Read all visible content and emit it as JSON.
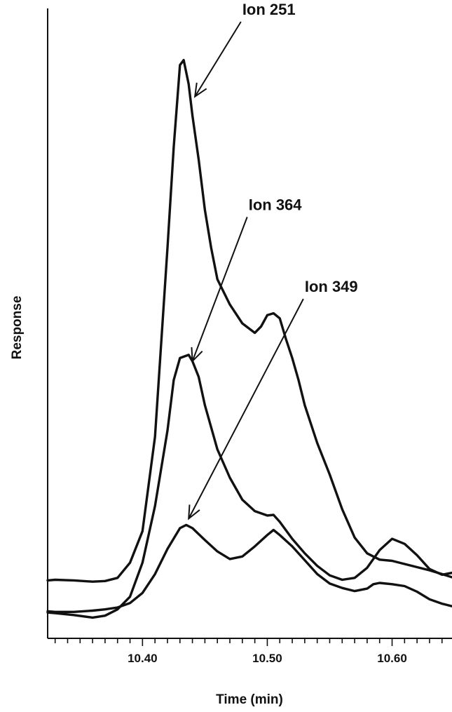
{
  "chart_data": {
    "type": "line",
    "xlabel": "Time (min)",
    "ylabel": "Response",
    "xlim": [
      10.324,
      10.648
    ],
    "ylim": [
      0,
      100
    ],
    "x_ticks": [
      10.4,
      10.5,
      10.6
    ],
    "x_tick_labels": [
      "10.40",
      "10.50",
      "10.60"
    ],
    "x_minor_step": 0.01,
    "series": [
      {
        "name": "Ion 251",
        "points": [
          [
            10.324,
            9.2
          ],
          [
            10.33,
            9.3
          ],
          [
            10.345,
            9.2
          ],
          [
            10.36,
            9.0
          ],
          [
            10.37,
            9.1
          ],
          [
            10.38,
            9.6
          ],
          [
            10.39,
            12.0
          ],
          [
            10.4,
            17.0
          ],
          [
            10.41,
            32.0
          ],
          [
            10.42,
            62.0
          ],
          [
            10.425,
            78.0
          ],
          [
            10.43,
            91.0
          ],
          [
            10.433,
            91.8
          ],
          [
            10.437,
            88.0
          ],
          [
            10.44,
            83.0
          ],
          [
            10.445,
            76.0
          ],
          [
            10.45,
            68.0
          ],
          [
            10.455,
            62.0
          ],
          [
            10.46,
            57.0
          ],
          [
            10.465,
            55.0
          ],
          [
            10.47,
            53.0
          ],
          [
            10.48,
            50.0
          ],
          [
            10.49,
            48.5
          ],
          [
            10.495,
            49.5
          ],
          [
            10.5,
            51.3
          ],
          [
            10.505,
            51.6
          ],
          [
            10.51,
            50.8
          ],
          [
            10.515,
            47.5
          ],
          [
            10.52,
            44.5
          ],
          [
            10.525,
            41.0
          ],
          [
            10.53,
            37.0
          ],
          [
            10.54,
            31.0
          ],
          [
            10.55,
            26.0
          ],
          [
            10.56,
            20.5
          ],
          [
            10.57,
            16.0
          ],
          [
            10.58,
            13.5
          ],
          [
            10.59,
            12.5
          ],
          [
            10.6,
            12.3
          ],
          [
            10.61,
            11.8
          ],
          [
            10.62,
            11.3
          ],
          [
            10.63,
            10.8
          ],
          [
            10.64,
            10.2
          ],
          [
            10.648,
            9.7
          ]
        ]
      },
      {
        "name": "Ion 364",
        "points": [
          [
            10.324,
            4.1
          ],
          [
            10.33,
            4.0
          ],
          [
            10.345,
            3.7
          ],
          [
            10.36,
            3.3
          ],
          [
            10.37,
            3.6
          ],
          [
            10.38,
            4.6
          ],
          [
            10.39,
            6.6
          ],
          [
            10.4,
            12.0
          ],
          [
            10.41,
            21.0
          ],
          [
            10.42,
            33.0
          ],
          [
            10.425,
            41.0
          ],
          [
            10.43,
            44.5
          ],
          [
            10.437,
            45.0
          ],
          [
            10.44,
            44.0
          ],
          [
            10.445,
            41.5
          ],
          [
            10.45,
            37.0
          ],
          [
            10.46,
            30.0
          ],
          [
            10.47,
            25.5
          ],
          [
            10.48,
            22.0
          ],
          [
            10.49,
            20.2
          ],
          [
            10.5,
            19.5
          ],
          [
            10.505,
            19.6
          ],
          [
            10.51,
            18.5
          ],
          [
            10.52,
            15.8
          ],
          [
            10.53,
            13.5
          ],
          [
            10.54,
            11.5
          ],
          [
            10.55,
            10.0
          ],
          [
            10.56,
            9.3
          ],
          [
            10.57,
            9.6
          ],
          [
            10.58,
            11.2
          ],
          [
            10.59,
            14.0
          ],
          [
            10.6,
            15.8
          ],
          [
            10.61,
            15.0
          ],
          [
            10.62,
            13.2
          ],
          [
            10.63,
            11.0
          ],
          [
            10.64,
            10.1
          ],
          [
            10.648,
            10.4
          ]
        ]
      },
      {
        "name": "Ion 349",
        "points": [
          [
            10.324,
            4.3
          ],
          [
            10.33,
            4.2
          ],
          [
            10.345,
            4.2
          ],
          [
            10.36,
            4.4
          ],
          [
            10.37,
            4.6
          ],
          [
            10.38,
            4.9
          ],
          [
            10.39,
            5.6
          ],
          [
            10.4,
            7.2
          ],
          [
            10.41,
            10.2
          ],
          [
            10.42,
            14.2
          ],
          [
            10.43,
            17.5
          ],
          [
            10.435,
            18.0
          ],
          [
            10.44,
            17.5
          ],
          [
            10.45,
            15.6
          ],
          [
            10.46,
            13.8
          ],
          [
            10.47,
            12.6
          ],
          [
            10.48,
            13.0
          ],
          [
            10.49,
            14.6
          ],
          [
            10.5,
            16.4
          ],
          [
            10.505,
            17.2
          ],
          [
            10.51,
            16.4
          ],
          [
            10.52,
            14.6
          ],
          [
            10.53,
            12.4
          ],
          [
            10.54,
            10.2
          ],
          [
            10.55,
            8.7
          ],
          [
            10.56,
            8.0
          ],
          [
            10.57,
            7.5
          ],
          [
            10.58,
            7.9
          ],
          [
            10.585,
            8.6
          ],
          [
            10.59,
            8.8
          ],
          [
            10.6,
            8.6
          ],
          [
            10.61,
            8.3
          ],
          [
            10.62,
            7.4
          ],
          [
            10.63,
            6.2
          ],
          [
            10.64,
            5.5
          ],
          [
            10.648,
            5.1
          ]
        ]
      }
    ],
    "annotations": [
      {
        "text": "Ion 251",
        "target_x": 10.442,
        "target_y": 86.0,
        "text_x": 10.48,
        "text_y": 99.0
      },
      {
        "text": "Ion 364",
        "target_x": 10.44,
        "target_y": 44.0,
        "text_x": 10.485,
        "text_y": 68.0
      },
      {
        "text": "Ion 349",
        "target_x": 10.437,
        "target_y": 19.0,
        "text_x": 10.53,
        "text_y": 55.0
      }
    ],
    "grid": false,
    "legend": "none"
  }
}
